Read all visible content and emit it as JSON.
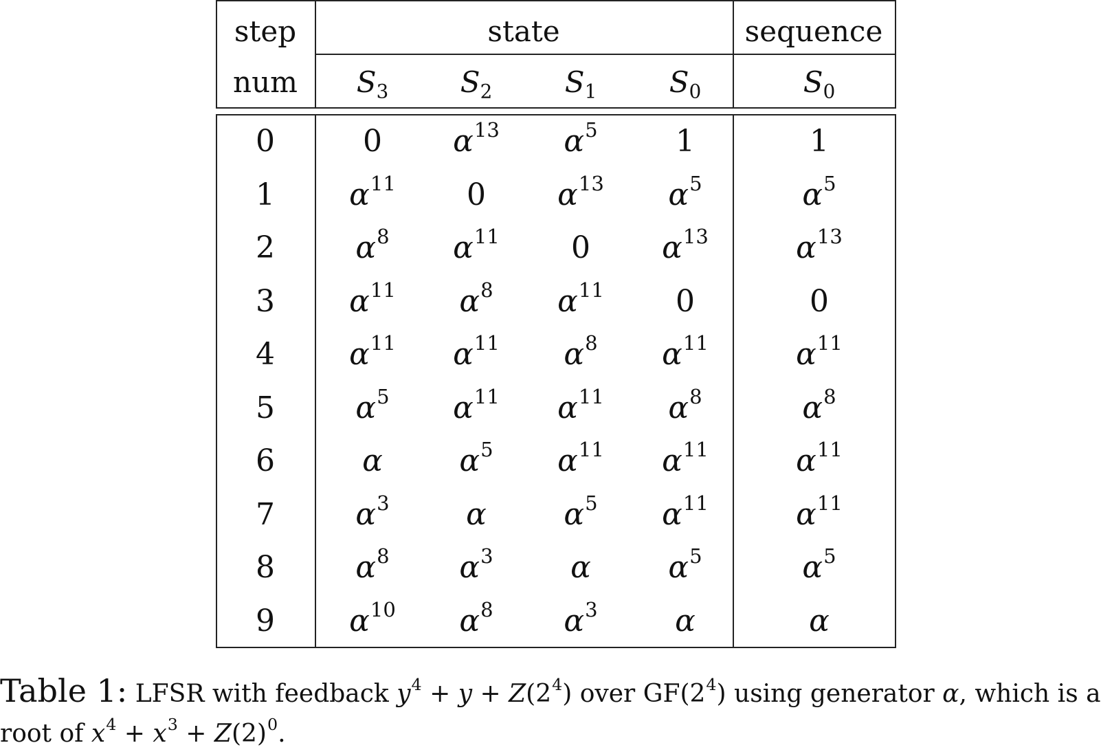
{
  "table": {
    "header": {
      "step": "step",
      "num": "num",
      "state": "state",
      "sequence": "sequence",
      "state_cols": [
        {
          "sym": "S",
          "sub": "3"
        },
        {
          "sym": "S",
          "sub": "2"
        },
        {
          "sym": "S",
          "sub": "1"
        },
        {
          "sym": "S",
          "sub": "0"
        }
      ],
      "sequence_col": {
        "sym": "S",
        "sub": "0"
      }
    },
    "rows": [
      {
        "step": "0",
        "s3": {
          "b": "0",
          "e": ""
        },
        "s2": {
          "b": "α",
          "e": "13"
        },
        "s1": {
          "b": "α",
          "e": "5"
        },
        "s0": {
          "b": "1",
          "e": ""
        },
        "seq": {
          "b": "1",
          "e": ""
        }
      },
      {
        "step": "1",
        "s3": {
          "b": "α",
          "e": "11"
        },
        "s2": {
          "b": "0",
          "e": ""
        },
        "s1": {
          "b": "α",
          "e": "13"
        },
        "s0": {
          "b": "α",
          "e": "5"
        },
        "seq": {
          "b": "α",
          "e": "5"
        }
      },
      {
        "step": "2",
        "s3": {
          "b": "α",
          "e": "8"
        },
        "s2": {
          "b": "α",
          "e": "11"
        },
        "s1": {
          "b": "0",
          "e": ""
        },
        "s0": {
          "b": "α",
          "e": "13"
        },
        "seq": {
          "b": "α",
          "e": "13"
        }
      },
      {
        "step": "3",
        "s3": {
          "b": "α",
          "e": "11"
        },
        "s2": {
          "b": "α",
          "e": "8"
        },
        "s1": {
          "b": "α",
          "e": "11"
        },
        "s0": {
          "b": "0",
          "e": ""
        },
        "seq": {
          "b": "0",
          "e": ""
        }
      },
      {
        "step": "4",
        "s3": {
          "b": "α",
          "e": "11"
        },
        "s2": {
          "b": "α",
          "e": "11"
        },
        "s1": {
          "b": "α",
          "e": "8"
        },
        "s0": {
          "b": "α",
          "e": "11"
        },
        "seq": {
          "b": "α",
          "e": "11"
        }
      },
      {
        "step": "5",
        "s3": {
          "b": "α",
          "e": "5"
        },
        "s2": {
          "b": "α",
          "e": "11"
        },
        "s1": {
          "b": "α",
          "e": "11"
        },
        "s0": {
          "b": "α",
          "e": "8"
        },
        "seq": {
          "b": "α",
          "e": "8"
        }
      },
      {
        "step": "6",
        "s3": {
          "b": "α",
          "e": ""
        },
        "s2": {
          "b": "α",
          "e": "5"
        },
        "s1": {
          "b": "α",
          "e": "11"
        },
        "s0": {
          "b": "α",
          "e": "11"
        },
        "seq": {
          "b": "α",
          "e": "11"
        }
      },
      {
        "step": "7",
        "s3": {
          "b": "α",
          "e": "3"
        },
        "s2": {
          "b": "α",
          "e": ""
        },
        "s1": {
          "b": "α",
          "e": "5"
        },
        "s0": {
          "b": "α",
          "e": "11"
        },
        "seq": {
          "b": "α",
          "e": "11"
        }
      },
      {
        "step": "8",
        "s3": {
          "b": "α",
          "e": "8"
        },
        "s2": {
          "b": "α",
          "e": "3"
        },
        "s1": {
          "b": "α",
          "e": ""
        },
        "s0": {
          "b": "α",
          "e": "5"
        },
        "seq": {
          "b": "α",
          "e": "5"
        }
      },
      {
        "step": "9",
        "s3": {
          "b": "α",
          "e": "10"
        },
        "s2": {
          "b": "α",
          "e": "8"
        },
        "s1": {
          "b": "α",
          "e": "3"
        },
        "s0": {
          "b": "α",
          "e": ""
        },
        "seq": {
          "b": "α",
          "e": ""
        }
      }
    ]
  },
  "caption": {
    "label": "Table 1:",
    "text_1": "LFSR with feedback",
    "poly_1": {
      "y": "y",
      "exp": "4",
      "rest_a": " + ",
      "y2": "y",
      "rest_b": " + ",
      "Z": "Z",
      "arg_open": "(2",
      "arg_exp": "4",
      "arg_close": ")"
    },
    "text_2": "over GF(2",
    "text_2_exp": "4",
    "text_3": ") using generator",
    "alpha": "α",
    "text_4": ", which is a",
    "text_5": "root of",
    "poly_2": {
      "x": "x",
      "e1": "4",
      "plus1": " + ",
      "x2": "x",
      "e2": "3",
      "plus2": " + ",
      "Z": "Z",
      "arg": "(2)",
      "e3": "0"
    },
    "end": "."
  }
}
